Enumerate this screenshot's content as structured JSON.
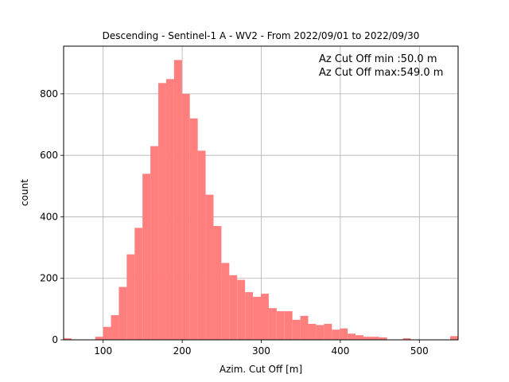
{
  "chart_data": {
    "type": "bar",
    "title": "Descending - Sentinel-1 A - WV2 - From 2022/09/01 to 2022/09/30",
    "xlabel": "Azim. Cut Off [m]",
    "ylabel": "count",
    "xlim": [
      50,
      549
    ],
    "ylim": [
      0,
      955
    ],
    "bin_width": 9.98,
    "x_ticks": [
      100,
      200,
      300,
      400,
      500
    ],
    "y_ticks": [
      0,
      200,
      400,
      600,
      800
    ],
    "grid": true,
    "bar_color": "#ff7f7f",
    "annotations": [
      "Az Cut Off min :50.0 m",
      "Az Cut Off max:549.0 m"
    ],
    "annotation_position": "top-right",
    "values": [
      5,
      0,
      0,
      0,
      10,
      42,
      80,
      172,
      278,
      364,
      540,
      630,
      835,
      848,
      910,
      800,
      720,
      615,
      472,
      370,
      250,
      210,
      195,
      155,
      140,
      150,
      103,
      93,
      93,
      65,
      78,
      52,
      48,
      52,
      33,
      37,
      20,
      15,
      10,
      10,
      8,
      0,
      0,
      5,
      0,
      0,
      0,
      0,
      0,
      12
    ]
  }
}
